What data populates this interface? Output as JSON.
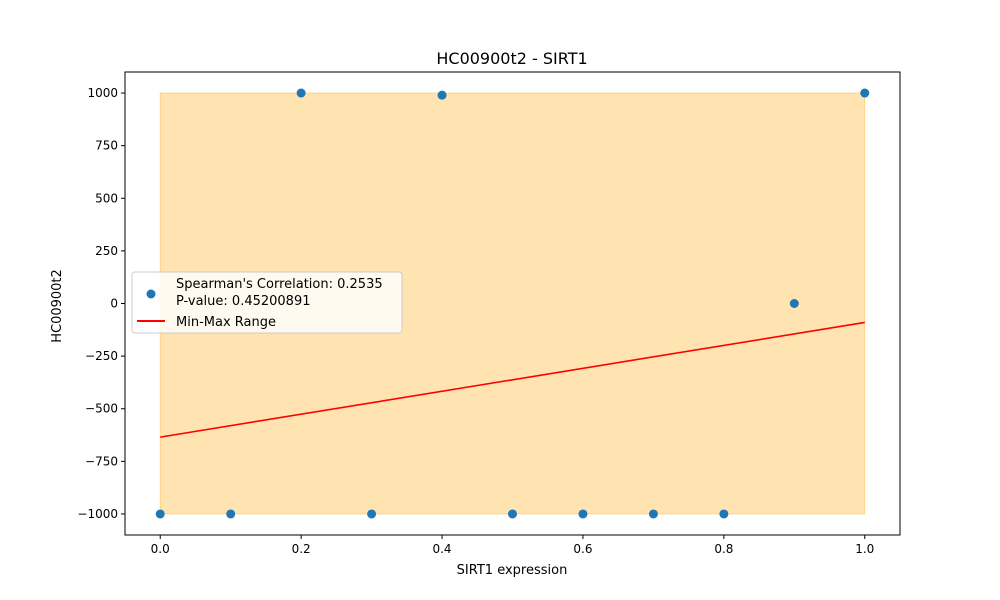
{
  "chart_data": {
    "type": "scatter",
    "title": "HC00900t2 - SIRT1",
    "xlabel": "SIRT1 expression",
    "ylabel": "HC00900t2",
    "xlim": [
      -0.05,
      1.05
    ],
    "ylim": [
      -1100,
      1100
    ],
    "x_ticks": [
      0.0,
      0.2,
      0.4,
      0.6,
      0.8,
      1.0
    ],
    "x_tick_labels": [
      "0.0",
      "0.2",
      "0.4",
      "0.6",
      "0.8",
      "1.0"
    ],
    "y_ticks": [
      1000,
      750,
      500,
      250,
      0,
      -250,
      -500,
      -750,
      -1000
    ],
    "y_tick_labels": [
      "1000",
      "750",
      "500",
      "250",
      "0",
      "−250",
      "−500",
      "−750",
      "−1000"
    ],
    "grid": false,
    "legend_placement": "center-left",
    "series": [
      {
        "name": "Spearman's Correlation: 0.2535\nP-value: 0.45200891",
        "name_lines": [
          "Spearman's Correlation: 0.2535",
          "P-value: 0.45200891"
        ],
        "type": "scatter",
        "color": "#1f77b4",
        "x": [
          0.0,
          0.1,
          0.2,
          0.3,
          0.4,
          0.5,
          0.6,
          0.7,
          0.8,
          0.9,
          1.0
        ],
        "y": [
          -1000,
          -1000,
          1000,
          -1000,
          990,
          -1000,
          -1000,
          -1000,
          -1000,
          0,
          1000
        ]
      },
      {
        "name": "Min-Max Range",
        "type": "line",
        "color": "#ff0000",
        "x": [
          0.0,
          1.0
        ],
        "y": [
          -635,
          -90
        ]
      }
    ],
    "band": {
      "x": [
        0.0,
        1.0
      ],
      "y": [
        -1000,
        1000
      ],
      "color": "#ffa500",
      "opacity": 0.3
    }
  }
}
